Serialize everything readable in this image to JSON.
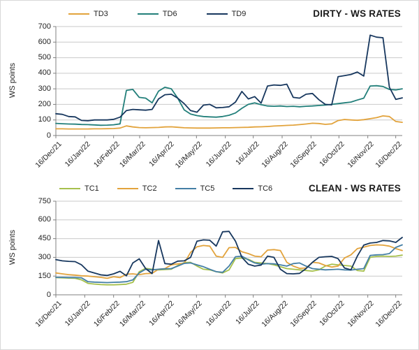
{
  "page": {
    "background": "#ffffff"
  },
  "style": {
    "axis_color": "#808080",
    "grid_color": "#c9c9c9",
    "text_color": "#1f1f1f"
  },
  "chart_data": [
    {
      "type": "line",
      "title": "DIRTY - WS RATES",
      "ylabel": "WS points",
      "ylim": [
        0,
        700
      ],
      "ytick_step": 100,
      "grid": true,
      "legend_position": "top",
      "x_tick_labels": [
        "16/Dec/21",
        "16/Jan/22",
        "16/Feb/22",
        "16/Mar/22",
        "16/Apr/22",
        "16/May/22",
        "16/Jun/22",
        "16/Jul/22",
        "16/Aug/22",
        "16/Sep/22",
        "16/Oct/22",
        "16/Nov/22",
        "16/Dec/22"
      ],
      "x_tick_days": [
        0,
        31,
        62,
        90,
        121,
        151,
        182,
        212,
        243,
        274,
        304,
        335,
        365
      ],
      "total_days": 372,
      "series": [
        {
          "name": "TD3",
          "color": "#E2A33C",
          "values": [
            43,
            43,
            42,
            42,
            42,
            42,
            43,
            43,
            44,
            45,
            48,
            62,
            55,
            51,
            50,
            51,
            52,
            55,
            56,
            53,
            50,
            49,
            48,
            48,
            48,
            49,
            50,
            50,
            51,
            52,
            53,
            55,
            56,
            58,
            61,
            63,
            65,
            67,
            70,
            74,
            79,
            77,
            72,
            75,
            96,
            103,
            100,
            98,
            102,
            108,
            115,
            126,
            122,
            90,
            85
          ]
        },
        {
          "name": "TD6",
          "color": "#227F7A",
          "values": [
            78,
            76,
            74,
            73,
            71,
            70,
            68,
            66,
            67,
            69,
            75,
            290,
            296,
            245,
            240,
            210,
            285,
            310,
            300,
            240,
            165,
            138,
            128,
            122,
            120,
            118,
            122,
            130,
            145,
            175,
            200,
            210,
            198,
            190,
            188,
            190,
            186,
            188,
            185,
            188,
            190,
            193,
            196,
            200,
            205,
            210,
            215,
            228,
            240,
            318,
            320,
            315,
            296,
            293,
            300
          ]
        },
        {
          "name": "TD9",
          "color": "#17375E",
          "values": [
            140,
            136,
            122,
            120,
            97,
            95,
            100,
            100,
            100,
            104,
            118,
            160,
            168,
            165,
            163,
            168,
            235,
            262,
            265,
            240,
            205,
            160,
            150,
            195,
            200,
            178,
            180,
            185,
            215,
            283,
            235,
            250,
            208,
            318,
            325,
            322,
            330,
            245,
            240,
            265,
            270,
            230,
            200,
            197,
            378,
            385,
            392,
            408,
            382,
            645,
            632,
            628,
            310,
            232,
            242
          ]
        }
      ]
    },
    {
      "type": "line",
      "title": "CLEAN - WS RATES",
      "ylabel": "WS points",
      "ylim": [
        0,
        750
      ],
      "ytick_step": 150,
      "grid": true,
      "legend_position": "top",
      "x_tick_labels": [
        "16/Dec/21",
        "16/Jan/22",
        "16/Feb/22",
        "16/Mar/22",
        "16/Apr/22",
        "16/May/22",
        "16/Jun/22",
        "16/Jul/22",
        "16/Aug/22",
        "16/Sep/22",
        "16/Oct/22",
        "16/Nov/22",
        "16/Dec/22"
      ],
      "x_tick_days": [
        0,
        31,
        62,
        90,
        121,
        151,
        182,
        212,
        243,
        274,
        304,
        335,
        365
      ],
      "total_days": 372,
      "series": [
        {
          "name": "TC1",
          "color": "#A6C04D",
          "values": [
            138,
            136,
            134,
            132,
            120,
            92,
            86,
            82,
            80,
            80,
            82,
            85,
            100,
            185,
            212,
            205,
            200,
            202,
            205,
            235,
            258,
            260,
            230,
            205,
            200,
            185,
            175,
            200,
            290,
            295,
            285,
            260,
            255,
            250,
            240,
            225,
            210,
            205,
            200,
            195,
            190,
            200,
            230,
            245,
            240,
            235,
            230,
            195,
            190,
            300,
            308,
            310,
            308,
            310,
            318
          ]
        },
        {
          "name": "TC2",
          "color": "#E2A33C",
          "values": [
            175,
            168,
            162,
            158,
            152,
            150,
            145,
            140,
            132,
            145,
            138,
            165,
            168,
            162,
            170,
            172,
            205,
            210,
            240,
            248,
            252,
            340,
            385,
            395,
            390,
            310,
            300,
            378,
            380,
            345,
            330,
            310,
            305,
            358,
            362,
            355,
            260,
            230,
            212,
            215,
            260,
            255,
            235,
            222,
            230,
            295,
            320,
            370,
            382,
            395,
            400,
            398,
            390,
            370,
            355
          ]
        },
        {
          "name": "TC5",
          "color": "#447FA5",
          "values": [
            140,
            140,
            138,
            138,
            136,
            105,
            102,
            100,
            98,
            100,
            102,
            105,
            120,
            175,
            205,
            200,
            205,
            208,
            210,
            230,
            252,
            255,
            240,
            225,
            205,
            185,
            180,
            230,
            305,
            310,
            280,
            255,
            245,
            250,
            248,
            240,
            230,
            250,
            255,
            230,
            210,
            205,
            200,
            202,
            205,
            200,
            198,
            205,
            210,
            315,
            320,
            322,
            330,
            380,
            400
          ]
        },
        {
          "name": "TC6",
          "color": "#17375E",
          "values": [
            282,
            272,
            268,
            266,
            240,
            190,
            175,
            160,
            155,
            168,
            188,
            152,
            255,
            288,
            210,
            170,
            435,
            250,
            245,
            270,
            272,
            300,
            430,
            440,
            437,
            390,
            505,
            508,
            430,
            300,
            245,
            230,
            238,
            310,
            300,
            205,
            170,
            168,
            172,
            210,
            260,
            300,
            305,
            308,
            290,
            215,
            200,
            310,
            398,
            415,
            420,
            435,
            432,
            420,
            460
          ]
        }
      ]
    }
  ]
}
